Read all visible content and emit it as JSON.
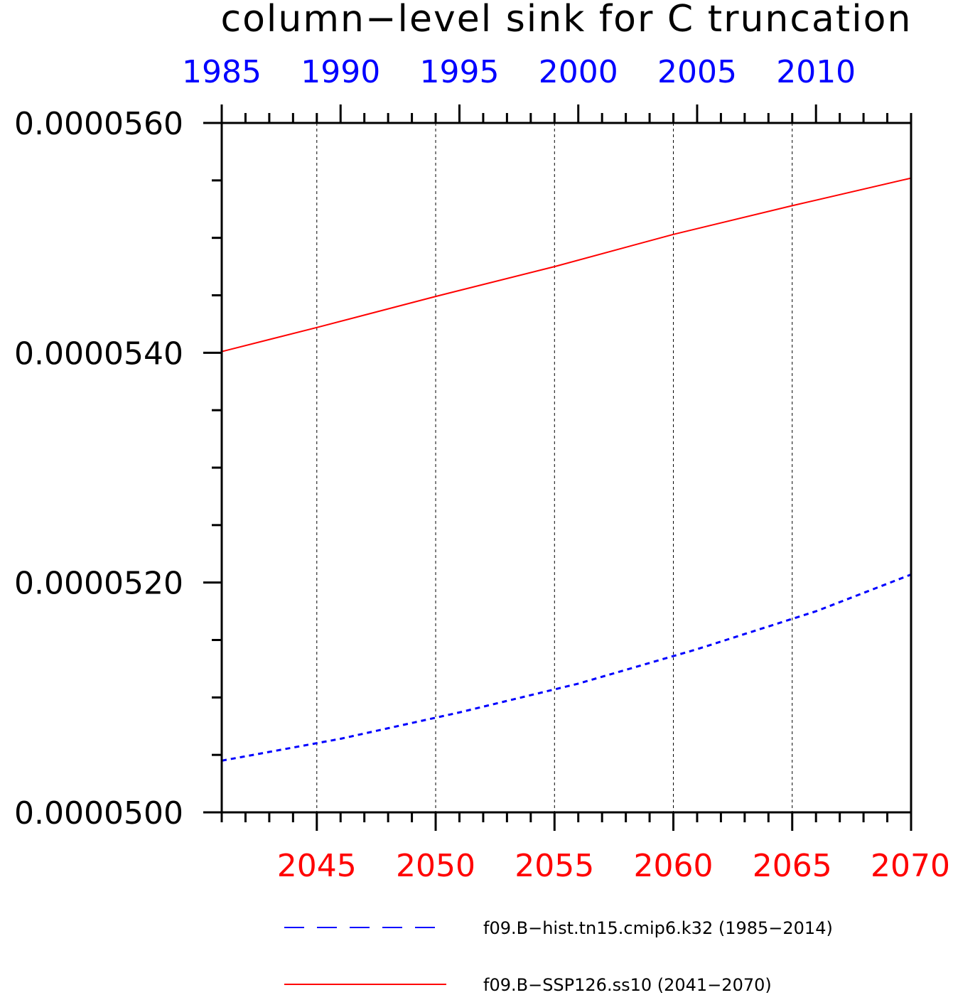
{
  "chart_data": {
    "type": "line",
    "title": "column−level sink for C truncation",
    "ylim": [
      5e-05,
      5.6e-05
    ],
    "y_major_ticks": [
      5e-05,
      5.2e-05,
      5.4e-05,
      5.6e-05
    ],
    "y_tick_labels": [
      "0.0000500",
      "0.0000520",
      "0.0000540",
      "0.0000560"
    ],
    "grid": "vertical-dashed",
    "legend_position": "bottom",
    "axes": {
      "bottom": {
        "range": [
          2041,
          2070
        ],
        "tick_values": [
          2045,
          2050,
          2055,
          2060,
          2065,
          2070
        ],
        "tick_labels": [
          "2045",
          "2050",
          "2055",
          "2060",
          "2065",
          "2070"
        ],
        "color": "#ff0000"
      },
      "top": {
        "range": [
          1985,
          2014
        ],
        "tick_values": [
          1985,
          1990,
          1995,
          2000,
          2005,
          2010
        ],
        "tick_labels": [
          "1985",
          "1990",
          "1995",
          "2000",
          "2005",
          "2010"
        ],
        "color": "#0000ff"
      }
    },
    "series": [
      {
        "name": "f09.B−hist.tn15.cmip6.k32 (1985−2014)",
        "axis": "top",
        "color": "#0000ff",
        "style": "dashed",
        "x": [
          1985,
          1990,
          1995,
          2000,
          2005,
          2010,
          2014
        ],
        "y": [
          5.045e-05,
          5.064e-05,
          5.087e-05,
          5.112e-05,
          5.142e-05,
          5.175e-05,
          5.207e-05
        ]
      },
      {
        "name": "f09.B−SSP126.ss10 (2041−2070)",
        "axis": "bottom",
        "color": "#ff0000",
        "style": "solid",
        "x": [
          2041,
          2045,
          2050,
          2055,
          2060,
          2065,
          2070
        ],
        "y": [
          5.401e-05,
          5.422e-05,
          5.449e-05,
          5.475e-05,
          5.503e-05,
          5.528e-05,
          5.552e-05
        ]
      }
    ]
  }
}
